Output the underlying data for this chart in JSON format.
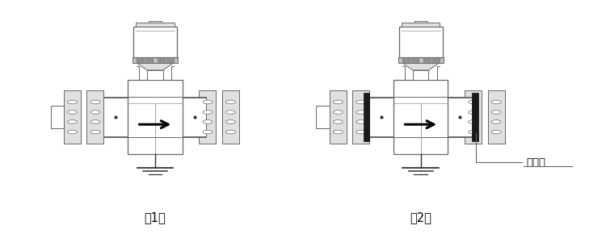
{
  "fig_width": 7.5,
  "fig_height": 2.9,
  "dpi": 100,
  "bg_color": "#ffffff",
  "lc": "#666666",
  "dc": "#333333",
  "gray_light": "#e0e0e0",
  "gray_med": "#c0c0c0",
  "gray_dark": "#909090",
  "label1": "（1）",
  "label2": "（2）",
  "annotation": "接地环",
  "d1cx": 0.255,
  "d2cx": 0.695,
  "dcy": 0.5
}
